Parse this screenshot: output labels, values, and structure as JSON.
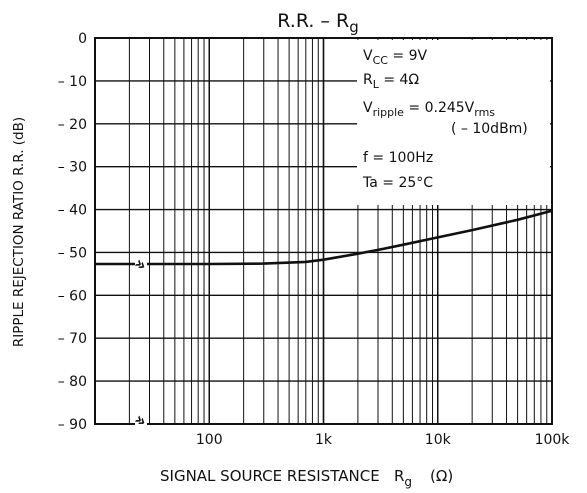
{
  "chart_data": {
    "type": "line",
    "title": {
      "base": "R.R.  –  R",
      "sub": "g"
    },
    "xlabel": {
      "base": "SIGNAL SOURCE RESISTANCE   R",
      "sub": "g",
      "unit": "(Ω)"
    },
    "ylabel": "RIPPLE REJECTION RATIO   R.R.   (dB)",
    "x_scale": "log",
    "xlim": [
      10,
      100000
    ],
    "ylim": [
      -90,
      0
    ],
    "x_ticks": [
      100,
      1000,
      10000,
      100000
    ],
    "x_tick_labels": [
      "100",
      "1k",
      "10k",
      "100k"
    ],
    "y_ticks": [
      0,
      -10,
      -20,
      -30,
      -40,
      -50,
      -60,
      -70,
      -80,
      -90
    ],
    "y_tick_labels": [
      "0",
      "– 10",
      "– 20",
      "– 30",
      "– 40",
      "– 50",
      "– 60",
      "– 70",
      "– 80",
      "– 90"
    ],
    "grid": true,
    "axis_break_symbol": "»",
    "series": [
      {
        "x": [
          10,
          100,
          300,
          700,
          1000,
          2000,
          3000,
          5000,
          10000,
          20000,
          50000,
          100000
        ],
        "y": [
          -52.7,
          -52.7,
          -52.6,
          -52.2,
          -51.7,
          -50.3,
          -49.4,
          -48.2,
          -46.5,
          -44.8,
          -42.4,
          -40.3
        ]
      }
    ],
    "conditions": [
      {
        "base": "V",
        "sub": "CC",
        "rest": " = 9V"
      },
      {
        "base": "R",
        "sub": "L",
        "rest": " = 4Ω"
      },
      {
        "base": "V",
        "sub": "ripple",
        "rest": " = 0.245V",
        "sub2": "rms"
      },
      {
        "base": "",
        "sub": "",
        "rest": "( – 10dBm)"
      },
      {
        "base": "f",
        "sub": "",
        "rest": " = 100Hz"
      },
      {
        "base": "Ta",
        "sub": "",
        "rest": " = 25°C"
      }
    ]
  }
}
